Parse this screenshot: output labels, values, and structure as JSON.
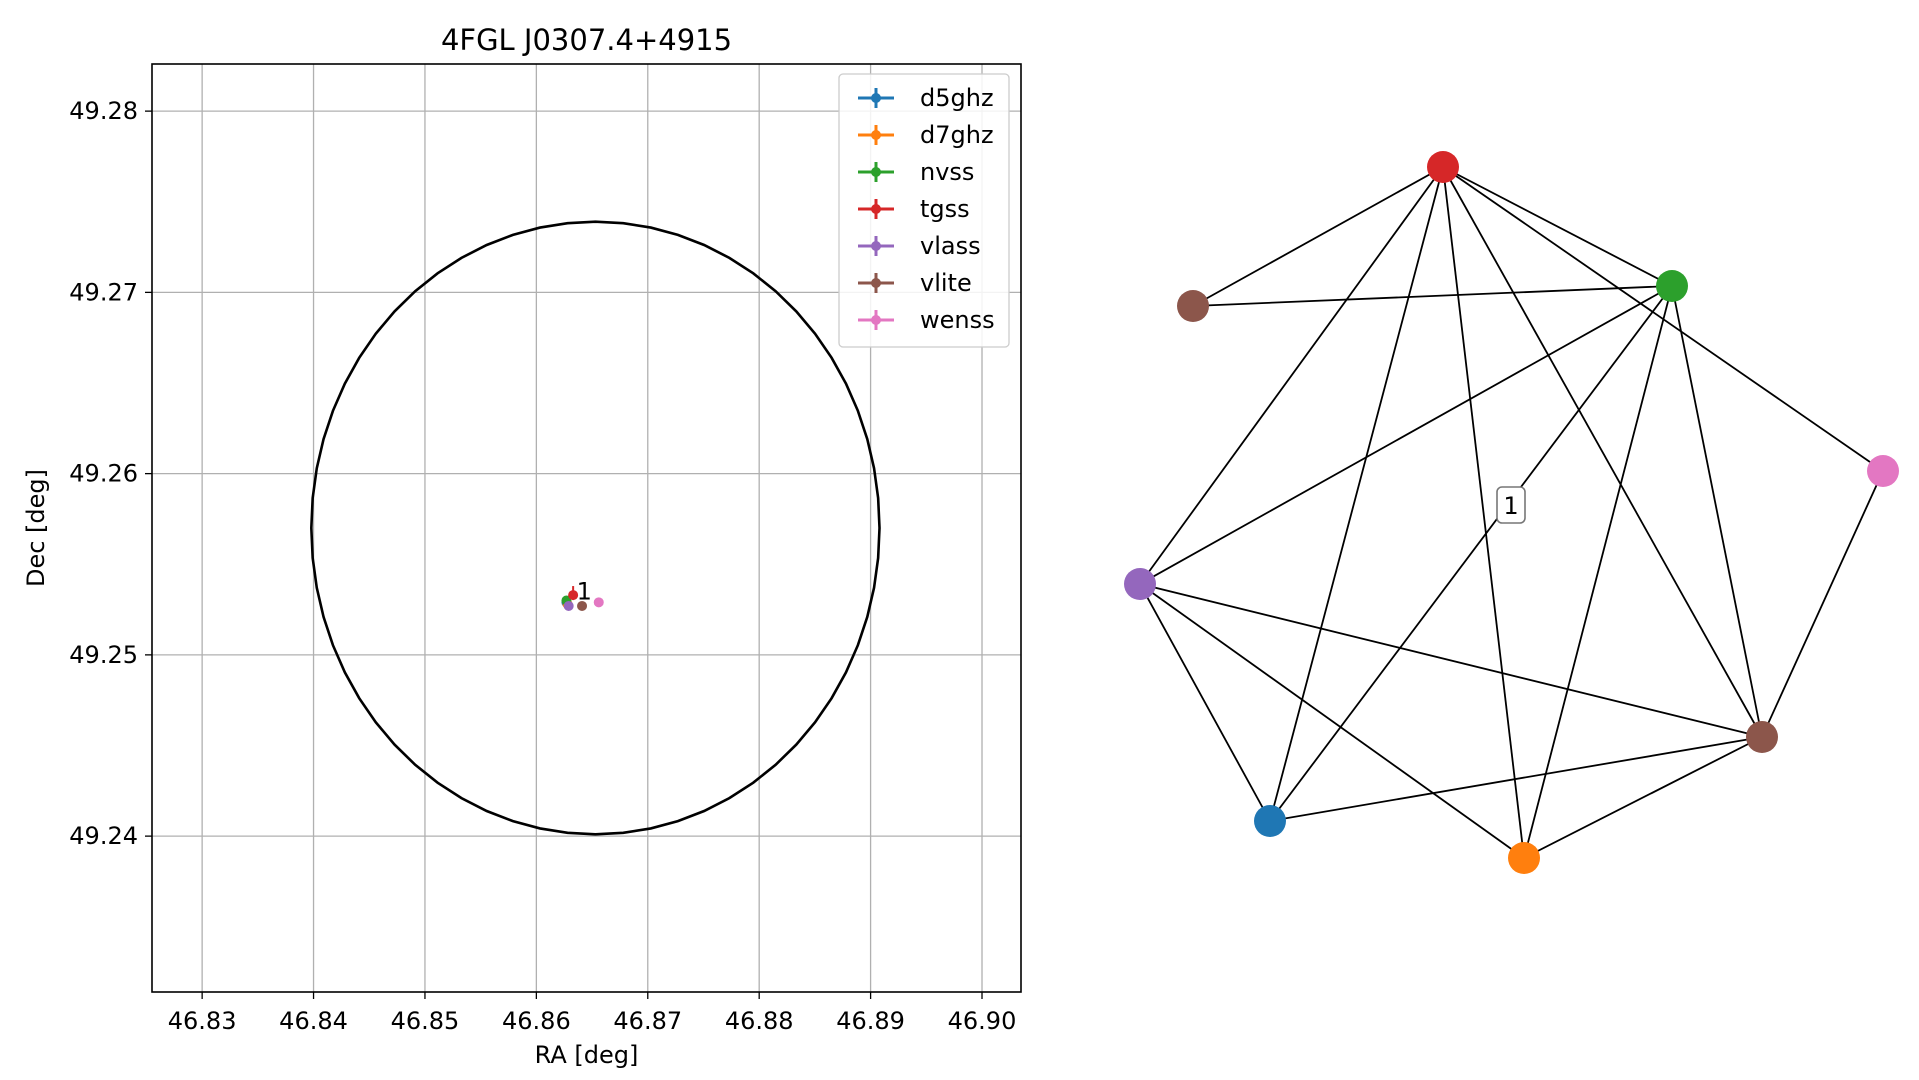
{
  "chart_data": [
    {
      "type": "scatter",
      "title": "4FGL J0307.4+4915",
      "xlabel": "RA [deg]",
      "ylabel": "Dec [deg]",
      "xlim": [
        46.8255,
        46.9035
      ],
      "ylim": [
        49.2314,
        49.2826
      ],
      "x_ticks": [
        46.83,
        46.84,
        46.85,
        46.86,
        46.87,
        46.88,
        46.89,
        46.9
      ],
      "x_tick_labels": [
        "46.83",
        "46.84",
        "46.85",
        "46.86",
        "46.87",
        "46.88",
        "46.89",
        "46.90"
      ],
      "y_ticks": [
        49.24,
        49.25,
        49.26,
        49.27,
        49.28
      ],
      "y_tick_labels": [
        "49.24",
        "49.25",
        "49.26",
        "49.27",
        "49.28"
      ],
      "grid": true,
      "legend_position": "top-right",
      "error_ellipse": {
        "center_ra": 46.8653,
        "center_dec": 49.257,
        "ra_halfwidth": 0.0255,
        "dec_halfwidth": 0.0169
      },
      "series": [
        {
          "name": "d5ghz",
          "color": "#1f77b4",
          "x": [
            46.8627
          ],
          "y": [
            49.2529
          ]
        },
        {
          "name": "d7ghz",
          "color": "#ff7f0e",
          "x": [
            46.8628
          ],
          "y": [
            49.2528
          ]
        },
        {
          "name": "nvss",
          "color": "#2ca02c",
          "x": [
            46.8627
          ],
          "y": [
            49.253
          ]
        },
        {
          "name": "tgss",
          "color": "#d62728",
          "x": [
            46.8633
          ],
          "y": [
            49.2533
          ]
        },
        {
          "name": "vlass",
          "color": "#9467bd",
          "x": [
            46.8629
          ],
          "y": [
            49.2527
          ]
        },
        {
          "name": "vlite",
          "color": "#8c564b",
          "x": [
            46.8641
          ],
          "y": [
            49.2527
          ]
        },
        {
          "name": "wenss",
          "color": "#e377c2",
          "x": [
            46.8656
          ],
          "y": [
            49.2529
          ]
        }
      ],
      "annotations": [
        {
          "text": "1",
          "x": 46.8643,
          "y": 49.2535
        }
      ]
    },
    {
      "type": "network",
      "nodes": [
        {
          "id": "tgss",
          "color": "#d62728"
        },
        {
          "id": "nvss",
          "color": "#2ca02c"
        },
        {
          "id": "vlite_a",
          "color": "#8c564b"
        },
        {
          "id": "wenss",
          "color": "#e377c2"
        },
        {
          "id": "vlass",
          "color": "#9467bd"
        },
        {
          "id": "vlite_b",
          "color": "#8c564b"
        },
        {
          "id": "d5ghz",
          "color": "#1f77b4"
        },
        {
          "id": "d7ghz",
          "color": "#ff7f0e"
        }
      ],
      "edges": [
        [
          "tgss",
          "vlite_a"
        ],
        [
          "tgss",
          "nvss"
        ],
        [
          "tgss",
          "vlass"
        ],
        [
          "tgss",
          "d5ghz"
        ],
        [
          "tgss",
          "d7ghz"
        ],
        [
          "tgss",
          "vlite_b"
        ],
        [
          "tgss",
          "wenss"
        ],
        [
          "vlite_a",
          "nvss"
        ],
        [
          "nvss",
          "vlass"
        ],
        [
          "nvss",
          "d5ghz"
        ],
        [
          "nvss",
          "d7ghz"
        ],
        [
          "nvss",
          "vlite_b"
        ],
        [
          "wenss",
          "vlite_b"
        ],
        [
          "vlass",
          "vlite_b"
        ],
        [
          "vlass",
          "d5ghz"
        ],
        [
          "vlass",
          "d7ghz"
        ],
        [
          "d5ghz",
          "vlite_b"
        ],
        [
          "d7ghz",
          "vlite_b"
        ]
      ],
      "label": "1"
    }
  ]
}
